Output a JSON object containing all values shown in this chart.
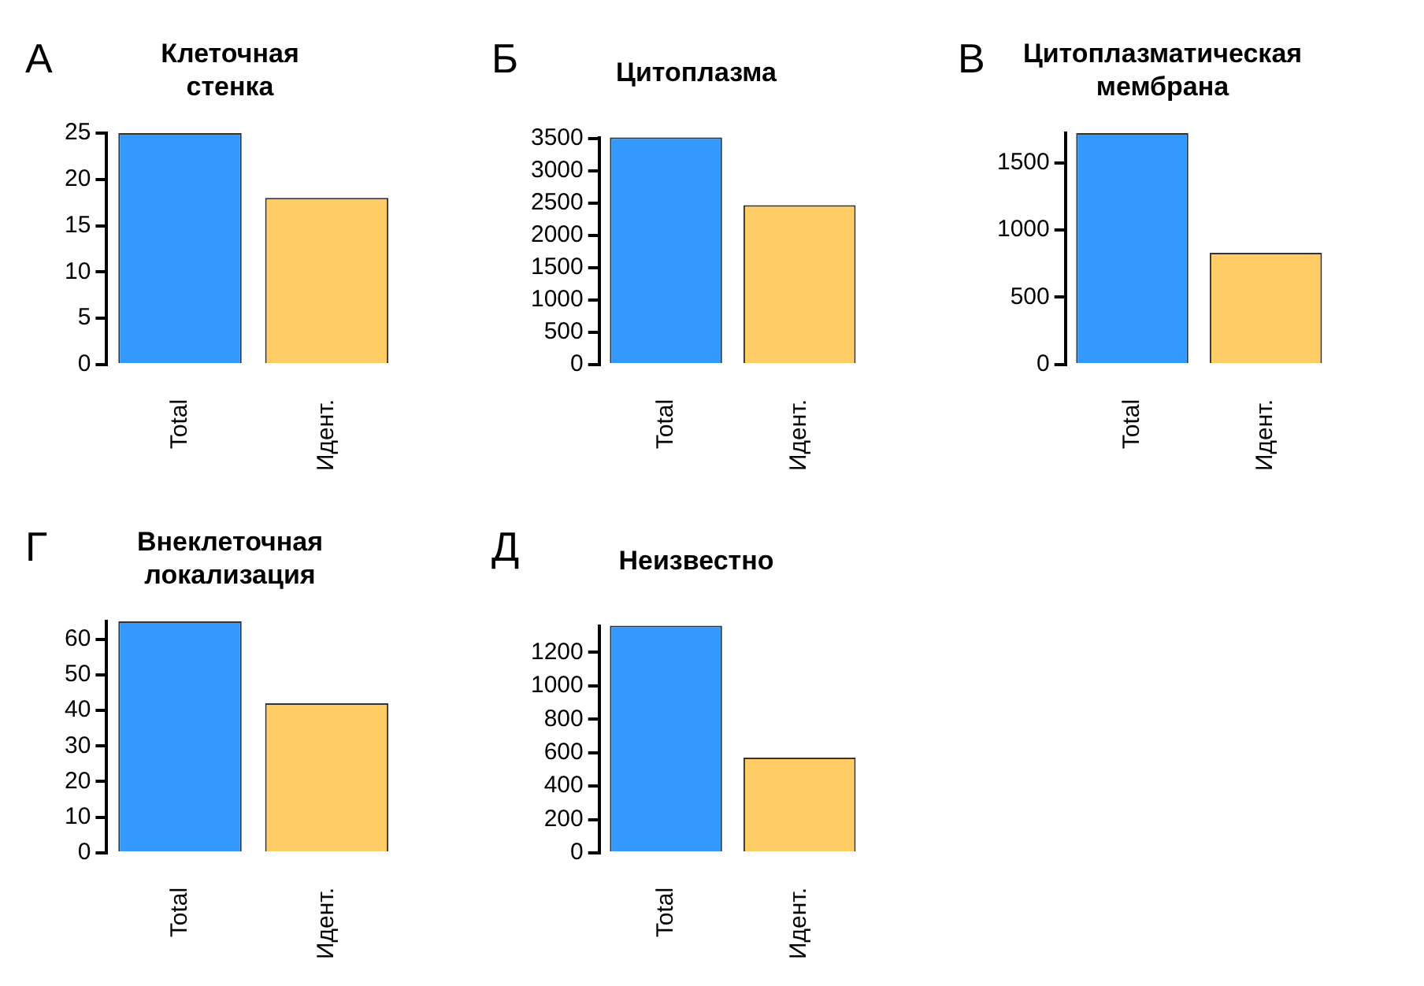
{
  "chart_data": [
    {
      "type": "bar",
      "title": "Клеточная\nстенка",
      "annotations": [
        "А"
      ],
      "categories": [
        "Total",
        "Идент."
      ],
      "values": [
        25,
        18
      ],
      "colors": [
        "#3399ff",
        "#ffcc66"
      ],
      "ylim": [
        0,
        25
      ],
      "yticks": [
        0,
        5,
        10,
        15,
        20,
        25
      ]
    },
    {
      "type": "bar",
      "title": "Цитоплазма",
      "annotations": [
        "Б"
      ],
      "categories": [
        "Total",
        "Идент."
      ],
      "values": [
        3520,
        2470
      ],
      "colors": [
        "#3399ff",
        "#ffcc66"
      ],
      "ylim": [
        0,
        3520
      ],
      "yticks": [
        0,
        500,
        1000,
        1500,
        2000,
        2500,
        3000,
        3500
      ]
    },
    {
      "type": "bar",
      "title": "Цитоплазматическая\nмембрана",
      "annotations": [
        "В"
      ],
      "categories": [
        "Total",
        "Идент."
      ],
      "values": [
        1720,
        830
      ],
      "colors": [
        "#3399ff",
        "#ffcc66"
      ],
      "ylim": [
        0,
        1720
      ],
      "yticks": [
        0,
        500,
        1000,
        1500
      ]
    },
    {
      "type": "bar",
      "title": "Внеклеточная\nлокализация",
      "annotations": [
        "Г"
      ],
      "categories": [
        "Total",
        "Идент."
      ],
      "values": [
        65,
        42
      ],
      "colors": [
        "#3399ff",
        "#ffcc66"
      ],
      "ylim": [
        0,
        65
      ],
      "yticks": [
        0,
        10,
        20,
        30,
        40,
        50,
        60
      ]
    },
    {
      "type": "bar",
      "title": "Неизвестно",
      "annotations": [
        "Д"
      ],
      "categories": [
        "Total",
        "Идент."
      ],
      "values": [
        1360,
        570
      ],
      "colors": [
        "#3399ff",
        "#ffcc66"
      ],
      "ylim": [
        0,
        1360
      ],
      "yticks": [
        0,
        200,
        400,
        600,
        800,
        1000,
        1200
      ]
    }
  ]
}
